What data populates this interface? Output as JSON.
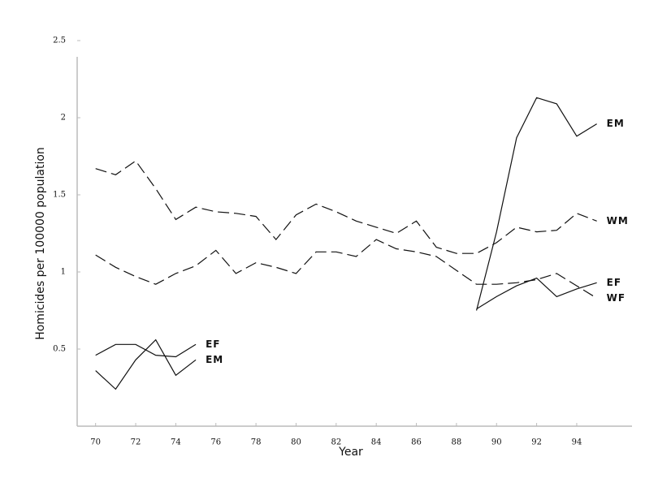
{
  "chart_data": {
    "type": "line",
    "x_label": "Year",
    "y_label": "Homicides per 100000 population",
    "x": [
      70,
      71,
      72,
      73,
      74,
      75,
      76,
      77,
      78,
      79,
      80,
      81,
      82,
      83,
      84,
      85,
      86,
      87,
      88,
      89,
      90,
      91,
      92,
      93,
      94,
      95
    ],
    "xlim": [
      69,
      97
    ],
    "xticks": [
      70,
      72,
      74,
      76,
      78,
      80,
      82,
      84,
      86,
      88,
      90,
      92,
      94
    ],
    "ylim": [
      0,
      2.5
    ],
    "yticks": [
      0.5,
      1,
      1.5,
      2,
      2.5
    ],
    "series": [
      {
        "name": "EM",
        "color": "#111111",
        "line_style": "solid",
        "values": [
          0.36,
          0.24,
          0.43,
          0.56,
          0.33,
          0.43,
          null,
          null,
          null,
          null,
          null,
          null,
          null,
          null,
          null,
          null,
          null,
          null,
          null,
          0.75,
          1.26,
          1.87,
          2.13,
          2.09,
          1.88,
          1.96
        ]
      },
      {
        "name": "EF",
        "color": "#111111",
        "line_style": "solid",
        "values": [
          0.46,
          0.53,
          0.53,
          0.46,
          0.45,
          0.53,
          null,
          null,
          null,
          null,
          null,
          null,
          null,
          null,
          null,
          null,
          null,
          null,
          null,
          0.76,
          0.84,
          0.91,
          0.96,
          0.84,
          0.89,
          0.93
        ]
      },
      {
        "name": "WM",
        "color": "#111111",
        "line_style": "dashed",
        "values": [
          1.67,
          1.63,
          1.72,
          1.54,
          1.34,
          1.42,
          1.39,
          1.38,
          1.36,
          1.21,
          1.37,
          1.44,
          1.39,
          1.33,
          1.29,
          1.25,
          1.33,
          1.16,
          1.12,
          1.12,
          1.19,
          1.29,
          1.26,
          1.27,
          1.38,
          1.33
        ]
      },
      {
        "name": "WF",
        "color": "#111111",
        "line_style": "dashed",
        "values": [
          1.11,
          1.03,
          0.97,
          0.92,
          0.99,
          1.04,
          1.14,
          0.99,
          1.06,
          1.03,
          0.99,
          1.13,
          1.13,
          1.1,
          1.21,
          1.15,
          1.13,
          1.1,
          1.01,
          0.92,
          0.92,
          0.93,
          0.95,
          0.99,
          0.91,
          0.83
        ]
      }
    ]
  }
}
